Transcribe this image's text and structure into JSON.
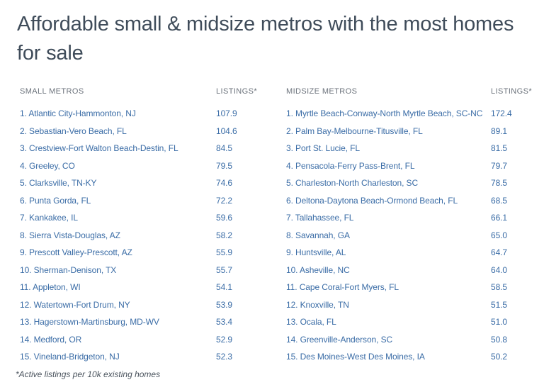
{
  "title": "Affordable small & midsize metros with the most homes for sale",
  "footnote": "*Active listings per 10k existing homes",
  "colors": {
    "background": "#ffffff",
    "title_text": "#3f4c5a",
    "column_header_text": "#6b727b",
    "row_text": "#3a6ca6",
    "footnote_text": "#4b545e"
  },
  "chart_data": {
    "type": "table",
    "title": "Affordable small & midsize metros with the most homes for sale",
    "footnote": "*Active listings per 10k existing homes",
    "value_definition": "Active listings per 10k existing homes",
    "tables": [
      {
        "name_header": "SMALL METROS",
        "value_header": "LISTINGS*",
        "rows": [
          {
            "rank": 1,
            "metro": "Atlantic City-Hammonton, NJ",
            "listings": "107.9"
          },
          {
            "rank": 2,
            "metro": "Sebastian-Vero Beach, FL",
            "listings": "104.6"
          },
          {
            "rank": 3,
            "metro": "Crestview-Fort Walton Beach-Destin, FL",
            "listings": "84.5"
          },
          {
            "rank": 4,
            "metro": "Greeley, CO",
            "listings": "79.5"
          },
          {
            "rank": 5,
            "metro": "Clarksville, TN-KY",
            "listings": "74.6"
          },
          {
            "rank": 6,
            "metro": "Punta Gorda, FL",
            "listings": "72.2"
          },
          {
            "rank": 7,
            "metro": "Kankakee, IL",
            "listings": "59.6"
          },
          {
            "rank": 8,
            "metro": "Sierra Vista-Douglas, AZ",
            "listings": "58.2"
          },
          {
            "rank": 9,
            "metro": "Prescott Valley-Prescott, AZ",
            "listings": "55.9"
          },
          {
            "rank": 10,
            "metro": "Sherman-Denison, TX",
            "listings": "55.7"
          },
          {
            "rank": 11,
            "metro": "Appleton, WI",
            "listings": "54.1"
          },
          {
            "rank": 12,
            "metro": "Watertown-Fort Drum, NY",
            "listings": "53.9"
          },
          {
            "rank": 13,
            "metro": "Hagerstown-Martinsburg, MD-WV",
            "listings": "53.4"
          },
          {
            "rank": 14,
            "metro": "Medford, OR",
            "listings": "52.9"
          },
          {
            "rank": 15,
            "metro": "Vineland-Bridgeton, NJ",
            "listings": "52.3"
          }
        ]
      },
      {
        "name_header": "MIDSIZE METROS",
        "value_header": "LISTINGS*",
        "rows": [
          {
            "rank": 1,
            "metro": "Myrtle Beach-Conway-North Myrtle Beach, SC-NC",
            "listings": "172.4"
          },
          {
            "rank": 2,
            "metro": "Palm Bay-Melbourne-Titusville, FL",
            "listings": "89.1"
          },
          {
            "rank": 3,
            "metro": "Port St. Lucie, FL",
            "listings": "81.5"
          },
          {
            "rank": 4,
            "metro": "Pensacola-Ferry Pass-Brent, FL",
            "listings": "79.7"
          },
          {
            "rank": 5,
            "metro": "Charleston-North Charleston, SC",
            "listings": "78.5"
          },
          {
            "rank": 6,
            "metro": "Deltona-Daytona Beach-Ormond Beach, FL",
            "listings": "68.5"
          },
          {
            "rank": 7,
            "metro": "Tallahassee, FL",
            "listings": "66.1"
          },
          {
            "rank": 8,
            "metro": "Savannah, GA",
            "listings": "65.0"
          },
          {
            "rank": 9,
            "metro": "Huntsville, AL",
            "listings": "64.7"
          },
          {
            "rank": 10,
            "metro": "Asheville, NC",
            "listings": "64.0"
          },
          {
            "rank": 11,
            "metro": "Cape Coral-Fort Myers, FL",
            "listings": "58.5"
          },
          {
            "rank": 12,
            "metro": "Knoxville, TN",
            "listings": "51.5"
          },
          {
            "rank": 13,
            "metro": "Ocala, FL",
            "listings": "51.0"
          },
          {
            "rank": 14,
            "metro": "Greenville-Anderson, SC",
            "listings": "50.8"
          },
          {
            "rank": 15,
            "metro": "Des Moines-West Des Moines, IA",
            "listings": "50.2"
          }
        ]
      }
    ]
  }
}
